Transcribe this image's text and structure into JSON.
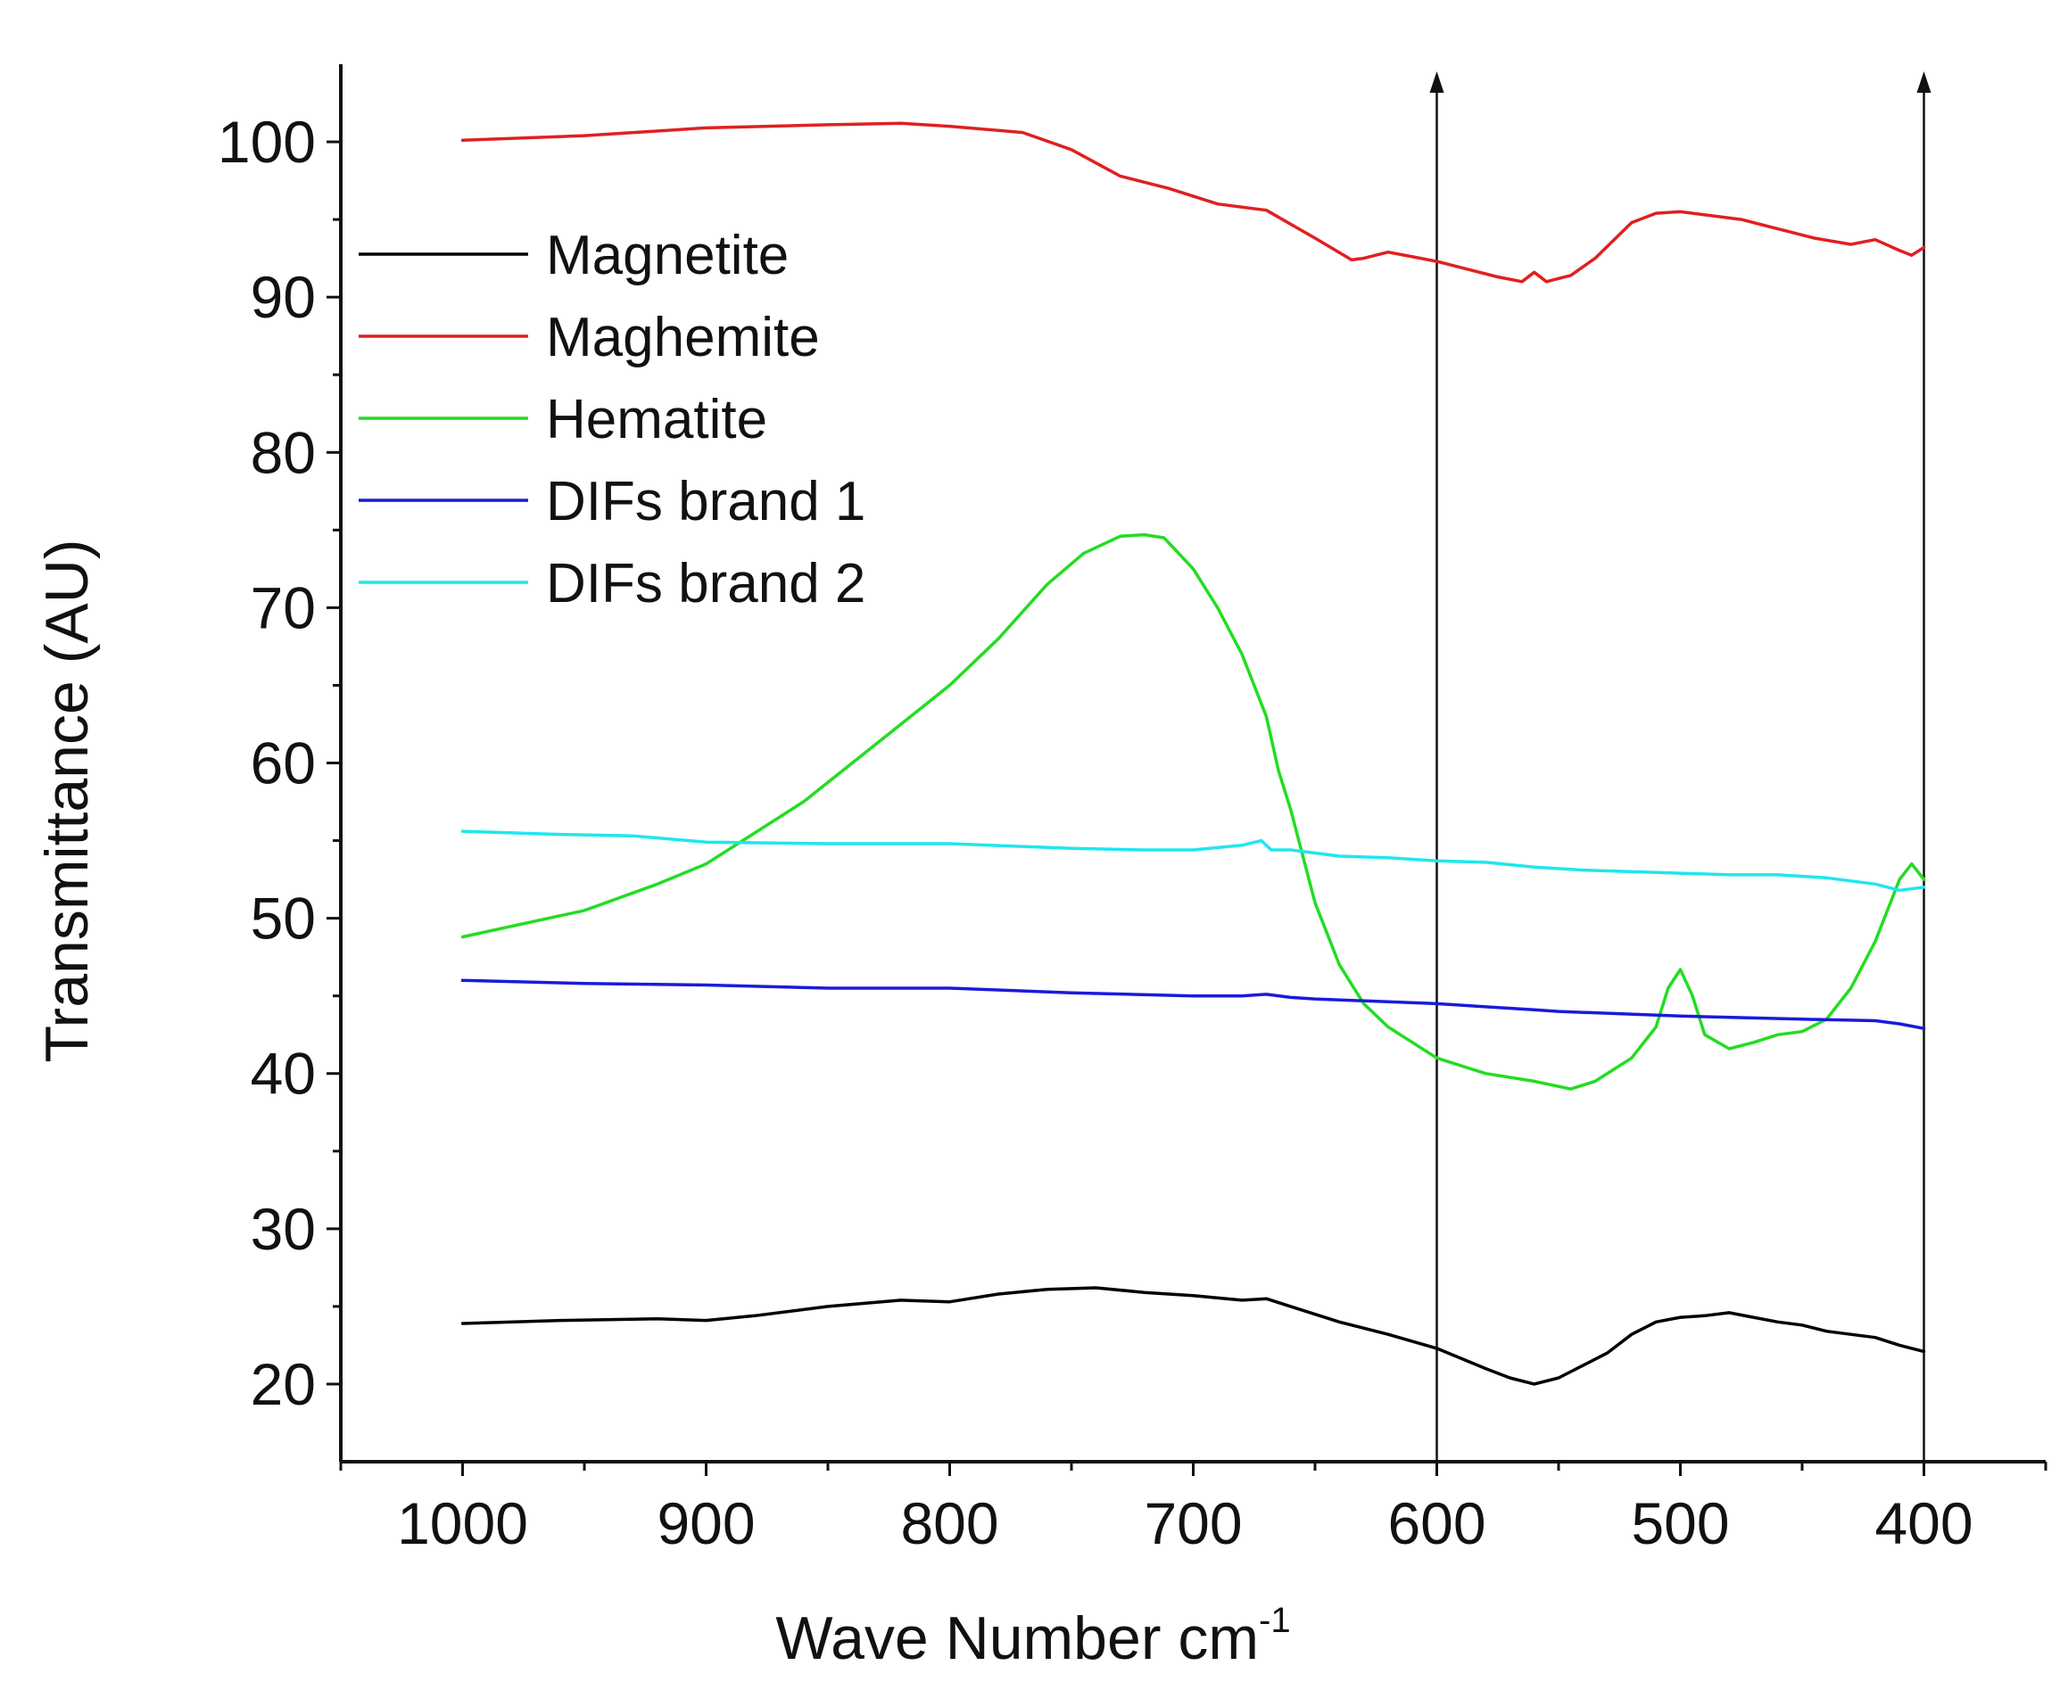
{
  "chart_data": {
    "type": "line",
    "title": "",
    "xlabel": "Wave Number cm",
    "xlabel_superscript": "-1",
    "ylabel": "Transmittance (AU)",
    "xlim": [
      1050,
      350
    ],
    "ylim": [
      15,
      105
    ],
    "x_ticks": [
      1000,
      900,
      800,
      700,
      600,
      500,
      400
    ],
    "x_tick_labels": [
      "1000",
      "900",
      "800",
      "700",
      "600",
      "500",
      "400"
    ],
    "y_ticks": [
      20,
      30,
      40,
      50,
      60,
      70,
      80,
      90,
      100
    ],
    "y_tick_labels": [
      "20",
      "30",
      "40",
      "50",
      "60",
      "70",
      "80",
      "90",
      "100"
    ],
    "grid": false,
    "legend_position": "top-left",
    "annotations": [
      {
        "type": "vertical-arrow",
        "x": 600
      },
      {
        "type": "vertical-arrow",
        "x": 400
      }
    ],
    "series": [
      {
        "name": "Magnetite",
        "color": "#000000",
        "x": [
          1000,
          960,
          920,
          900,
          880,
          850,
          820,
          800,
          780,
          760,
          740,
          720,
          700,
          680,
          670,
          660,
          640,
          620,
          600,
          580,
          570,
          560,
          550,
          540,
          530,
          520,
          510,
          500,
          490,
          480,
          470,
          460,
          450,
          440,
          430,
          420,
          410,
          400
        ],
        "y": [
          23.9,
          24.1,
          24.2,
          24.1,
          24.4,
          25.0,
          25.4,
          25.3,
          25.8,
          26.1,
          26.2,
          25.9,
          25.7,
          25.4,
          25.5,
          25.0,
          24.0,
          23.2,
          22.3,
          21.0,
          20.4,
          20.0,
          20.4,
          21.2,
          22.0,
          23.2,
          24.0,
          24.3,
          24.4,
          24.6,
          24.3,
          24.0,
          23.8,
          23.4,
          23.2,
          23.0,
          22.5,
          22.1
        ]
      },
      {
        "name": "Maghemite",
        "color": "#e02020",
        "x": [
          1000,
          950,
          900,
          850,
          820,
          800,
          770,
          750,
          730,
          710,
          690,
          670,
          650,
          635,
          630,
          620,
          610,
          600,
          590,
          575,
          565,
          560,
          555,
          545,
          535,
          520,
          510,
          500,
          490,
          475,
          460,
          445,
          430,
          420,
          410,
          405,
          400
        ],
        "y": [
          100.1,
          100.4,
          100.9,
          101.1,
          101.2,
          101.0,
          100.6,
          99.5,
          97.8,
          97.0,
          96.0,
          95.6,
          93.8,
          92.4,
          92.5,
          92.9,
          92.6,
          92.3,
          91.9,
          91.3,
          91.0,
          91.6,
          91.0,
          91.4,
          92.5,
          94.8,
          95.4,
          95.5,
          95.3,
          95.0,
          94.4,
          93.8,
          93.4,
          93.7,
          93.0,
          92.7,
          93.2
        ]
      },
      {
        "name": "Hematite",
        "color": "#22dd22",
        "x": [
          1000,
          950,
          920,
          900,
          880,
          860,
          840,
          820,
          800,
          780,
          760,
          745,
          730,
          720,
          712,
          700,
          690,
          680,
          670,
          665,
          660,
          650,
          640,
          630,
          620,
          600,
          580,
          560,
          545,
          535,
          520,
          510,
          505,
          500,
          495,
          490,
          480,
          470,
          460,
          450,
          440,
          430,
          420,
          410,
          405,
          400
        ],
        "y": [
          48.8,
          50.5,
          52.2,
          53.5,
          55.5,
          57.5,
          60.0,
          62.5,
          65.0,
          68.0,
          71.5,
          73.5,
          74.6,
          74.7,
          74.5,
          72.5,
          70.0,
          67.0,
          63.0,
          59.5,
          57.0,
          51.0,
          47.0,
          44.5,
          43.0,
          41.0,
          40.0,
          39.5,
          39.0,
          39.5,
          41.0,
          43.0,
          45.5,
          46.7,
          45.0,
          42.5,
          41.6,
          42.0,
          42.5,
          42.7,
          43.5,
          45.5,
          48.5,
          52.5,
          53.5,
          52.5
        ]
      },
      {
        "name": "DIFs brand 1",
        "color": "#1a1adc",
        "x": [
          1000,
          950,
          900,
          850,
          800,
          750,
          700,
          680,
          670,
          660,
          650,
          600,
          560,
          550,
          500,
          450,
          420,
          410,
          400
        ],
        "y": [
          46.0,
          45.8,
          45.7,
          45.5,
          45.5,
          45.2,
          45.0,
          45.0,
          45.1,
          44.9,
          44.8,
          44.5,
          44.1,
          44.0,
          43.7,
          43.5,
          43.4,
          43.2,
          42.9
        ]
      },
      {
        "name": "DIFs brand 2",
        "color": "#1fe6ee",
        "x": [
          1000,
          960,
          930,
          900,
          850,
          800,
          750,
          720,
          700,
          680,
          672,
          668,
          660,
          640,
          620,
          600,
          580,
          560,
          540,
          520,
          500,
          480,
          460,
          440,
          420,
          410,
          400
        ],
        "y": [
          55.6,
          55.4,
          55.3,
          54.9,
          54.8,
          54.8,
          54.5,
          54.4,
          54.4,
          54.7,
          55.0,
          54.4,
          54.4,
          54.0,
          53.9,
          53.7,
          53.6,
          53.3,
          53.1,
          53.0,
          52.9,
          52.8,
          52.8,
          52.6,
          52.2,
          51.8,
          52.0
        ]
      }
    ]
  }
}
